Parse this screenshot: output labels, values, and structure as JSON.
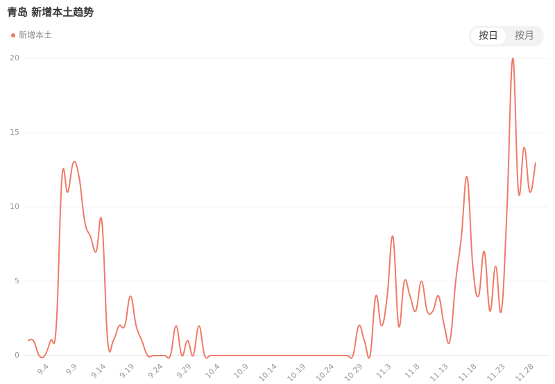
{
  "chart_data": {
    "type": "line",
    "title": "青岛 新增本土趋势",
    "categories": [
      null,
      null,
      null,
      "9.4",
      null,
      null,
      null,
      null,
      "9.9",
      null,
      null,
      null,
      null,
      "9.14",
      null,
      null,
      null,
      null,
      "9.19",
      null,
      null,
      null,
      null,
      "9.24",
      null,
      null,
      null,
      null,
      "9.29",
      null,
      null,
      null,
      null,
      "10.4",
      null,
      null,
      null,
      null,
      "10.9",
      null,
      null,
      null,
      null,
      "10.14",
      null,
      null,
      null,
      null,
      "10.19",
      null,
      null,
      null,
      null,
      "10.24",
      null,
      null,
      null,
      null,
      "10.29",
      null,
      null,
      null,
      null,
      "11.3",
      null,
      null,
      null,
      null,
      "11.8",
      null,
      null,
      null,
      null,
      "11.13",
      null,
      null,
      null,
      null,
      "11.18",
      null,
      null,
      null,
      null,
      "11.23",
      null,
      null,
      null,
      null,
      "11.28",
      null
    ],
    "series": [
      {
        "name": "新增本土",
        "color": "#ef7a68",
        "values": [
          1,
          1,
          0,
          0,
          1,
          2,
          12,
          11,
          13,
          12,
          9,
          8,
          7,
          9,
          1,
          1,
          2,
          2,
          4,
          2,
          1,
          0,
          0,
          0,
          0,
          0,
          2,
          0,
          1,
          0,
          2,
          0,
          0,
          0,
          0,
          0,
          0,
          0,
          0,
          0,
          0,
          0,
          0,
          0,
          0,
          0,
          0,
          0,
          0,
          0,
          0,
          0,
          0,
          0,
          0,
          0,
          0,
          0,
          2,
          1,
          0,
          4,
          2,
          4,
          8,
          2,
          5,
          4,
          3,
          5,
          3,
          3,
          4,
          2,
          1,
          5,
          8,
          12,
          6,
          4,
          7,
          3,
          6,
          3,
          10,
          20,
          11,
          14,
          11,
          13
        ]
      }
    ],
    "ylim": [
      0,
      20
    ],
    "yticks": [
      0,
      5,
      10,
      15,
      20
    ],
    "grid": true
  },
  "controls": {
    "buttons": [
      "按日",
      "按月"
    ]
  }
}
